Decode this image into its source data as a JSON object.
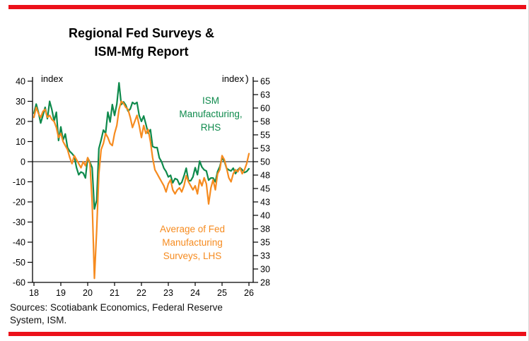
{
  "page": {
    "title_line1": "Regional Fed Surveys &",
    "title_line2": "ISM-Mfg Report",
    "sources_line1": "Sources: Scotiabank Economics, Federal Reserve",
    "sources_line2": "System, ISM.",
    "accent_red": "#EC111A"
  },
  "chart_data": {
    "type": "line",
    "title": "Regional Fed Surveys & ISM-Mfg Report",
    "grid": "off",
    "left_axis": {
      "label": "index",
      "range": [
        -60,
        40
      ],
      "ticks": [
        40,
        30,
        20,
        10,
        0,
        -10,
        -20,
        -30,
        -40,
        -50,
        -60
      ]
    },
    "right_axis": {
      "label": "index",
      "bracket": ")",
      "range": [
        28,
        65
      ],
      "ticks": [
        65,
        63,
        60,
        58,
        55,
        53,
        50,
        48,
        45,
        43,
        40,
        38,
        35,
        33,
        30,
        28
      ]
    },
    "x_axis": {
      "ticks": [
        "18",
        "19",
        "20",
        "21",
        "22",
        "23",
        "24",
        "25",
        "26"
      ],
      "range": [
        2018,
        2026.2
      ],
      "unit": "year"
    },
    "series": [
      {
        "name": "ISM Manufacturing, RHS",
        "axis": "right",
        "color": "#0E8A4C",
        "annotation": [
          "ISM",
          "Manufacturing,",
          "RHS"
        ],
        "start": 2018,
        "step_months": 1,
        "values": [
          59.1,
          60.8,
          59.3,
          57.3,
          58.7,
          60.2,
          58.1,
          61.3,
          59.8,
          57.7,
          59.3,
          54.1,
          56.6,
          54.2,
          55.3,
          52.8,
          52.1,
          51.7,
          51.2,
          49.1,
          47.8,
          48.3,
          48.1,
          47.2,
          50.9,
          50.1,
          49.1,
          41.5,
          43.1,
          52.6,
          54.2,
          56.0,
          55.4,
          59.3,
          57.5,
          60.7,
          58.7,
          60.8,
          64.7,
          60.7,
          61.2,
          60.6,
          59.5,
          59.9,
          61.1,
          60.8,
          61.1,
          58.7,
          57.6,
          58.6,
          57.1,
          55.4,
          56.1,
          53.0,
          52.8,
          52.8,
          50.9,
          50.2,
          49.0,
          48.4,
          47.4,
          47.7,
          46.3,
          47.1,
          46.9,
          46.0,
          46.4,
          47.6,
          49.0,
          46.7,
          46.7,
          47.4,
          49.1,
          47.8,
          50.3,
          49.2,
          48.7,
          48.5,
          46.8,
          47.2,
          47.2,
          46.5,
          48.4,
          49.3,
          50.9,
          50.3,
          49.0,
          48.7,
          48.5,
          49.0,
          48.0,
          48.7,
          49.1,
          48.7,
          48.2,
          48.4,
          48.9
        ]
      },
      {
        "name": "Average of Fed Manufacturing Surveys, LHS",
        "axis": "left",
        "color": "#F68B1F",
        "annotation": [
          "Average of Fed",
          "Manufacturing",
          "Surveys, LHS"
        ],
        "start": 2018,
        "step_months": 1,
        "values": [
          22,
          27,
          24,
          22,
          25,
          26,
          22,
          23,
          21,
          20,
          17,
          12,
          14,
          10,
          8,
          6,
          2,
          -1,
          3,
          1,
          -1,
          -3,
          0,
          -2,
          2,
          -1,
          -20,
          -58,
          -34,
          -6,
          6,
          9,
          14,
          12,
          9,
          8,
          14,
          18,
          26,
          30,
          29,
          27,
          26,
          22,
          17,
          20,
          23,
          18,
          12,
          18,
          14,
          16,
          10,
          2,
          -4,
          -6,
          -8,
          -10,
          -12,
          -15,
          -11,
          -9,
          -14,
          -16,
          -14,
          -13,
          -15,
          -12,
          -7,
          -10,
          -12,
          -14,
          -12,
          -16,
          -9,
          -12,
          -8,
          -11,
          -21,
          -13,
          -9,
          -14,
          -6,
          -4,
          3,
          1,
          -3,
          -8,
          -10,
          -6,
          -4,
          -5,
          -3,
          -6,
          -4,
          -1,
          4
        ]
      }
    ]
  }
}
